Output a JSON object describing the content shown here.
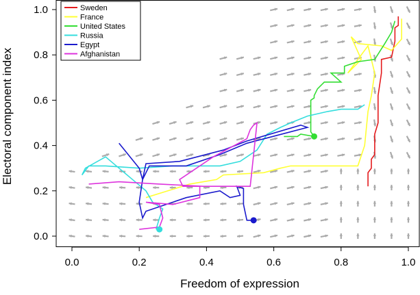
{
  "chart_data": {
    "type": "line",
    "xlabel": "Freedom of expression",
    "ylabel": "Electoral component index",
    "xlim": [
      0.0,
      1.0
    ],
    "ylim": [
      0.0,
      1.0
    ],
    "x_ticks": [
      "0.0",
      "0.2",
      "0.4",
      "0.6",
      "0.8",
      "1.0"
    ],
    "y_ticks": [
      "0.0",
      "0.2",
      "0.4",
      "0.6",
      "0.8",
      "1.0"
    ],
    "grid": false,
    "legend_position": "top-left",
    "background": "vector field of grey arrows",
    "series": [
      {
        "name": "Sweden",
        "color": "#e41a1c",
        "x": [
          0.88,
          0.88,
          0.89,
          0.89,
          0.9,
          0.9,
          0.91,
          0.91,
          0.92,
          0.92,
          0.95,
          0.96,
          0.96,
          0.97,
          0.97
        ],
        "y": [
          0.22,
          0.28,
          0.3,
          0.34,
          0.36,
          0.45,
          0.5,
          0.62,
          0.72,
          0.78,
          0.79,
          0.86,
          0.92,
          0.93,
          0.97
        ]
      },
      {
        "name": "France",
        "color": "#ffff33",
        "x": [
          0.22,
          0.35,
          0.43,
          0.45,
          0.57,
          0.62,
          0.65,
          0.85,
          0.87,
          0.88,
          0.89,
          0.9,
          0.88,
          0.82,
          0.86,
          0.83,
          0.85,
          0.92,
          0.95,
          0.98,
          0.98
        ],
        "y": [
          0.17,
          0.23,
          0.25,
          0.27,
          0.28,
          0.3,
          0.31,
          0.31,
          0.4,
          0.55,
          0.62,
          0.72,
          0.84,
          0.72,
          0.78,
          0.88,
          0.85,
          0.84,
          0.82,
          0.87,
          0.96
        ]
      },
      {
        "name": "United States",
        "color": "#33dd33",
        "x": [
          0.63,
          0.67,
          0.68,
          0.72,
          0.71,
          0.71,
          0.72,
          0.72,
          0.73,
          0.75,
          0.8,
          0.77,
          0.81,
          0.81,
          0.85,
          0.9,
          0.93,
          0.95,
          0.96
        ],
        "y": [
          0.44,
          0.44,
          0.45,
          0.44,
          0.46,
          0.6,
          0.61,
          0.62,
          0.65,
          0.68,
          0.68,
          0.72,
          0.72,
          0.75,
          0.77,
          0.78,
          0.85,
          0.9,
          0.95
        ]
      },
      {
        "name": "Russia",
        "color": "#33dddd",
        "x": [
          0.25,
          0.26,
          0.27,
          0.24,
          0.22,
          0.18,
          0.14,
          0.1,
          0.04,
          0.03,
          0.05,
          0.1,
          0.2,
          0.3,
          0.44,
          0.5,
          0.55,
          0.58,
          0.62,
          0.65,
          0.7,
          0.76,
          0.8,
          0.85,
          0.87
        ],
        "y": [
          0.03,
          0.08,
          0.12,
          0.15,
          0.2,
          0.25,
          0.3,
          0.35,
          0.3,
          0.27,
          0.31,
          0.31,
          0.3,
          0.31,
          0.31,
          0.33,
          0.38,
          0.45,
          0.48,
          0.5,
          0.53,
          0.55,
          0.56,
          0.56,
          0.58
        ]
      },
      {
        "name": "Egypt",
        "color": "#1a1acc",
        "x": [
          0.54,
          0.52,
          0.51,
          0.51,
          0.49,
          0.5,
          0.47,
          0.44,
          0.34,
          0.22,
          0.21,
          0.2,
          0.21,
          0.22,
          0.32,
          0.45,
          0.52,
          0.68,
          0.7,
          0.52,
          0.44,
          0.34,
          0.23,
          0.21,
          0.2,
          0.14
        ],
        "y": [
          0.07,
          0.07,
          0.14,
          0.21,
          0.22,
          0.18,
          0.17,
          0.2,
          0.17,
          0.11,
          0.08,
          0.15,
          0.25,
          0.32,
          0.33,
          0.38,
          0.42,
          0.49,
          0.48,
          0.41,
          0.36,
          0.31,
          0.31,
          0.25,
          0.3,
          0.41
        ]
      },
      {
        "name": "Afghanistan",
        "color": "#dd33dd",
        "x": [
          0.2,
          0.26,
          0.27,
          0.26,
          0.22,
          0.3,
          0.38,
          0.38,
          0.33,
          0.32,
          0.42,
          0.52,
          0.53,
          0.54,
          0.55,
          0.53,
          0.39,
          0.26,
          0.14,
          0.05
        ],
        "y": [
          0.03,
          0.04,
          0.08,
          0.14,
          0.15,
          0.14,
          0.17,
          0.22,
          0.22,
          0.25,
          0.35,
          0.43,
          0.47,
          0.49,
          0.5,
          0.22,
          0.22,
          0.23,
          0.24,
          0.23
        ]
      }
    ],
    "endpoint_markers": [
      {
        "series": "United States",
        "x": 0.72,
        "y": 0.44
      },
      {
        "series": "Russia",
        "x": 0.26,
        "y": 0.03
      },
      {
        "series": "Egypt",
        "x": 0.54,
        "y": 0.07
      }
    ]
  }
}
